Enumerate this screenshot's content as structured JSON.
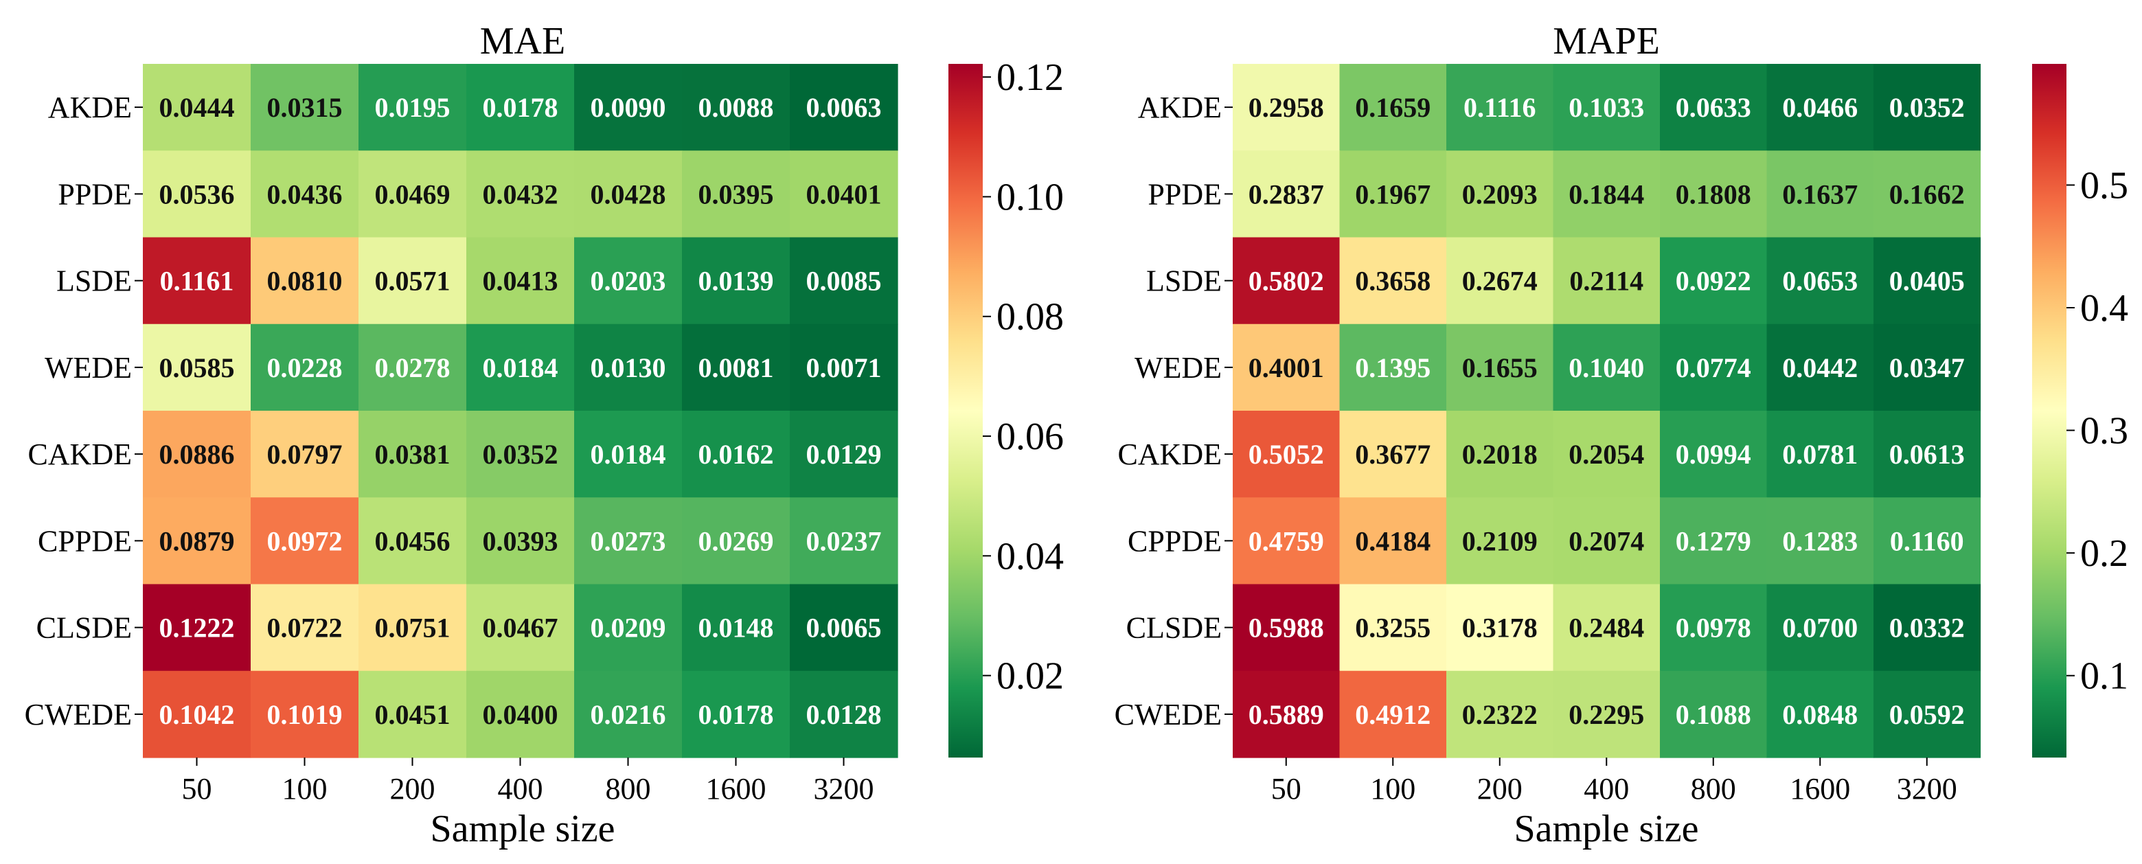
{
  "chart_data": [
    {
      "type": "heatmap",
      "title": "MAE",
      "xlabel": "Sample size",
      "ylabel": "",
      "x_categories": [
        "50",
        "100",
        "200",
        "400",
        "800",
        "1600",
        "3200"
      ],
      "y_categories": [
        "AKDE",
        "PPDE",
        "LSDE",
        "WEDE",
        "CAKDE",
        "CPPDE",
        "CLSDE",
        "CWEDE"
      ],
      "values": [
        [
          0.0444,
          0.0315,
          0.0195,
          0.0178,
          0.009,
          0.0088,
          0.0063
        ],
        [
          0.0536,
          0.0436,
          0.0469,
          0.0432,
          0.0428,
          0.0395,
          0.0401
        ],
        [
          0.1161,
          0.081,
          0.0571,
          0.0413,
          0.0203,
          0.0139,
          0.0085
        ],
        [
          0.0585,
          0.0228,
          0.0278,
          0.0184,
          0.013,
          0.0081,
          0.0071
        ],
        [
          0.0886,
          0.0797,
          0.0381,
          0.0352,
          0.0184,
          0.0162,
          0.0129
        ],
        [
          0.0879,
          0.0972,
          0.0456,
          0.0393,
          0.0273,
          0.0269,
          0.0237
        ],
        [
          0.1222,
          0.0722,
          0.0751,
          0.0467,
          0.0209,
          0.0148,
          0.0065
        ],
        [
          0.1042,
          0.1019,
          0.0451,
          0.04,
          0.0216,
          0.0178,
          0.0128
        ]
      ],
      "labels": [
        [
          "0.0444",
          "0.0315",
          "0.0195",
          "0.0178",
          "0.0090",
          "0.0088",
          "0.0063"
        ],
        [
          "0.0536",
          "0.0436",
          "0.0469",
          "0.0432",
          "0.0428",
          "0.0395",
          "0.0401"
        ],
        [
          "0.1161",
          "0.0810",
          "0.0571",
          "0.0413",
          "0.0203",
          "0.0139",
          "0.0085"
        ],
        [
          "0.0585",
          "0.0228",
          "0.0278",
          "0.0184",
          "0.0130",
          "0.0081",
          "0.0071"
        ],
        [
          "0.0886",
          "0.0797",
          "0.0381",
          "0.0352",
          "0.0184",
          "0.0162",
          "0.0129"
        ],
        [
          "0.0879",
          "0.0972",
          "0.0456",
          "0.0393",
          "0.0273",
          "0.0269",
          "0.0237"
        ],
        [
          "0.1222",
          "0.0722",
          "0.0751",
          "0.0467",
          "0.0209",
          "0.0148",
          "0.0065"
        ],
        [
          "0.1042",
          "0.1019",
          "0.0451",
          "0.0400",
          "0.0216",
          "0.0178",
          "0.0128"
        ]
      ],
      "colormap": "RdYlGn_r",
      "vmin": 0.0063,
      "vmax": 0.1222,
      "colorbar_ticks": [
        0.02,
        0.04,
        0.06,
        0.08,
        0.1,
        0.12
      ],
      "colorbar_tick_labels": [
        "0.02",
        "0.04",
        "0.06",
        "0.08",
        "0.10",
        "0.12"
      ]
    },
    {
      "type": "heatmap",
      "title": "MAPE",
      "xlabel": "Sample size",
      "ylabel": "",
      "x_categories": [
        "50",
        "100",
        "200",
        "400",
        "800",
        "1600",
        "3200"
      ],
      "y_categories": [
        "AKDE",
        "PPDE",
        "LSDE",
        "WEDE",
        "CAKDE",
        "CPPDE",
        "CLSDE",
        "CWEDE"
      ],
      "values": [
        [
          0.2958,
          0.1659,
          0.1116,
          0.1033,
          0.0633,
          0.0466,
          0.0352
        ],
        [
          0.2837,
          0.1967,
          0.2093,
          0.1844,
          0.1808,
          0.1637,
          0.1662
        ],
        [
          0.5802,
          0.3658,
          0.2674,
          0.2114,
          0.0922,
          0.0653,
          0.0405
        ],
        [
          0.4001,
          0.1395,
          0.1655,
          0.104,
          0.0774,
          0.0442,
          0.0347
        ],
        [
          0.5052,
          0.3677,
          0.2018,
          0.2054,
          0.0994,
          0.0781,
          0.0613
        ],
        [
          0.4759,
          0.4184,
          0.2109,
          0.2074,
          0.1279,
          0.1283,
          0.116
        ],
        [
          0.5988,
          0.3255,
          0.3178,
          0.2484,
          0.0978,
          0.07,
          0.0332
        ],
        [
          0.5889,
          0.4912,
          0.2322,
          0.2295,
          0.1088,
          0.0848,
          0.0592
        ]
      ],
      "labels": [
        [
          "0.2958",
          "0.1659",
          "0.1116",
          "0.1033",
          "0.0633",
          "0.0466",
          "0.0352"
        ],
        [
          "0.2837",
          "0.1967",
          "0.2093",
          "0.1844",
          "0.1808",
          "0.1637",
          "0.1662"
        ],
        [
          "0.5802",
          "0.3658",
          "0.2674",
          "0.2114",
          "0.0922",
          "0.0653",
          "0.0405"
        ],
        [
          "0.4001",
          "0.1395",
          "0.1655",
          "0.1040",
          "0.0774",
          "0.0442",
          "0.0347"
        ],
        [
          "0.5052",
          "0.3677",
          "0.2018",
          "0.2054",
          "0.0994",
          "0.0781",
          "0.0613"
        ],
        [
          "0.4759",
          "0.4184",
          "0.2109",
          "0.2074",
          "0.1279",
          "0.1283",
          "0.1160"
        ],
        [
          "0.5988",
          "0.3255",
          "0.3178",
          "0.2484",
          "0.0978",
          "0.0700",
          "0.0332"
        ],
        [
          "0.5889",
          "0.4912",
          "0.2322",
          "0.2295",
          "0.1088",
          "0.0848",
          "0.0592"
        ]
      ],
      "colormap": "RdYlGn_r",
      "vmin": 0.0332,
      "vmax": 0.5988,
      "colorbar_ticks": [
        0.1,
        0.2,
        0.3,
        0.4,
        0.5
      ],
      "colorbar_tick_labels": [
        "0.1",
        "0.2",
        "0.3",
        "0.4",
        "0.5"
      ]
    }
  ]
}
